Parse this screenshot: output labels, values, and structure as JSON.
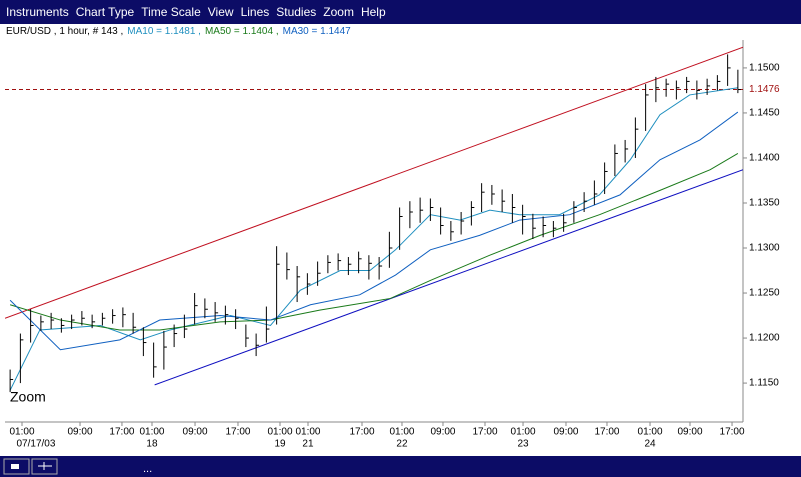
{
  "menu": [
    "Instruments",
    "Chart Type",
    "Time Scale",
    "View",
    "Lines",
    "Studies",
    "Zoom",
    "Help"
  ],
  "status_text": "...",
  "chart_data": {
    "type": "ohlc",
    "subtitle": "EUR/USD , 1 hour, # 143 ,",
    "zoom_label": "Zoom",
    "bar_color": "#000000",
    "close": [
      1.1154,
      1.1198,
      1.1214,
      1.1218,
      1.122,
      1.1214,
      1.122,
      1.1222,
      1.1218,
      1.1222,
      1.1225,
      1.1226,
      1.1212,
      1.1195,
      1.1168,
      1.119,
      1.1205,
      1.121,
      1.1236,
      1.1232,
      1.1228,
      1.1226,
      1.1222,
      1.12,
      1.1192,
      1.121,
      1.1282,
      1.1276,
      1.1268,
      1.126,
      1.1272,
      1.1284,
      1.1286,
      1.1282,
      1.1288,
      1.1283,
      1.128,
      1.13,
      1.1335,
      1.134,
      1.1342,
      1.1345,
      1.1325,
      1.1318,
      1.133,
      1.1345,
      1.1362,
      1.136,
      1.1352,
      1.1345,
      1.1335,
      1.1322,
      1.1325,
      1.1322,
      1.1328,
      1.1345,
      1.1352,
      1.136,
      1.1385,
      1.1405,
      1.141,
      1.1432,
      1.147,
      1.1478,
      1.1482,
      1.1478,
      1.1485,
      1.1475,
      1.148,
      1.1485,
      1.15,
      1.1476
    ],
    "high": [
      1.1165,
      1.1205,
      1.1232,
      1.1225,
      1.1228,
      1.1222,
      1.1226,
      1.123,
      1.1226,
      1.1228,
      1.1232,
      1.1234,
      1.1228,
      1.1212,
      1.1195,
      1.1208,
      1.1215,
      1.1226,
      1.125,
      1.1244,
      1.124,
      1.1236,
      1.1232,
      1.1215,
      1.1205,
      1.1235,
      1.1302,
      1.1295,
      1.128,
      1.1272,
      1.1285,
      1.1292,
      1.1294,
      1.129,
      1.1296,
      1.1292,
      1.129,
      1.1318,
      1.1345,
      1.1352,
      1.1356,
      1.1355,
      1.1345,
      1.133,
      1.134,
      1.1352,
      1.1372,
      1.137,
      1.1365,
      1.136,
      1.1348,
      1.1338,
      1.1335,
      1.133,
      1.1338,
      1.1352,
      1.1362,
      1.1375,
      1.1395,
      1.1415,
      1.142,
      1.1445,
      1.1482,
      1.149,
      1.1488,
      1.1486,
      1.149,
      1.1486,
      1.1488,
      1.1492,
      1.1515,
      1.1498
    ],
    "low": [
      1.114,
      1.115,
      1.1195,
      1.1208,
      1.121,
      1.1206,
      1.121,
      1.1214,
      1.1211,
      1.1214,
      1.1216,
      1.1212,
      1.1205,
      1.118,
      1.1156,
      1.1165,
      1.119,
      1.12,
      1.1215,
      1.1222,
      1.1218,
      1.1215,
      1.121,
      1.119,
      1.118,
      1.1195,
      1.1215,
      1.1265,
      1.124,
      1.1248,
      1.1258,
      1.1272,
      1.1275,
      1.127,
      1.1272,
      1.1265,
      1.1265,
      1.1278,
      1.1298,
      1.1322,
      1.1328,
      1.133,
      1.1315,
      1.1308,
      1.1315,
      1.1325,
      1.134,
      1.1348,
      1.134,
      1.1328,
      1.1315,
      1.131,
      1.1312,
      1.1312,
      1.1318,
      1.1328,
      1.134,
      1.1348,
      1.136,
      1.138,
      1.1395,
      1.14,
      1.143,
      1.1462,
      1.1468,
      1.1465,
      1.1472,
      1.1465,
      1.147,
      1.1475,
      1.148,
      1.1472
    ],
    "series": [
      {
        "name": "MA10 = 1.1481 ,",
        "color": "#1f8fbf",
        "x": [
          0,
          2.9,
          8.8,
          12.7,
          15.6,
          21.5,
          25.4,
          28.3,
          32.2,
          35.1,
          37.6,
          41,
          43.9,
          46.8,
          49.7,
          53.6,
          57.5,
          60.5,
          63.4,
          66.3,
          71
        ],
        "values": [
          1.1142,
          1.1209,
          1.1214,
          1.1198,
          1.1209,
          1.1225,
          1.1214,
          1.1253,
          1.1275,
          1.1275,
          1.1298,
          1.1337,
          1.1331,
          1.1342,
          1.1337,
          1.1337,
          1.1359,
          1.1398,
          1.1448,
          1.147,
          1.1478
        ]
      },
      {
        "name": "MA50 = 1.1404 ,",
        "color": "#1a7a1a",
        "x": [
          0,
          4.9,
          10.7,
          14.6,
          20.5,
          25.4,
          30.2,
          37.1,
          41,
          46.8,
          51.7,
          57.5,
          63.4,
          68.3,
          71
        ],
        "values": [
          1.1237,
          1.122,
          1.1209,
          1.1209,
          1.1218,
          1.122,
          1.1231,
          1.1244,
          1.1264,
          1.1292,
          1.1314,
          1.1337,
          1.1364,
          1.1387,
          1.1405
        ]
      },
      {
        "name": "MA30 = 1.1447",
        "color": "#1060c0",
        "x": [
          0,
          4.9,
          10.7,
          14.6,
          20.5,
          25.4,
          29.3,
          34.1,
          37.6,
          41,
          45.8,
          49.7,
          54.6,
          59.5,
          63.4,
          67.3,
          71
        ],
        "values": [
          1.1242,
          1.1187,
          1.1198,
          1.122,
          1.1225,
          1.122,
          1.1237,
          1.1248,
          1.127,
          1.1298,
          1.1314,
          1.1331,
          1.1337,
          1.1359,
          1.1398,
          1.142,
          1.1451
        ]
      }
    ],
    "trendlines": [
      {
        "color": "#c01020",
        "x": [
          -0.5,
          71.5
        ],
        "values": [
          1.1222,
          1.1523
        ]
      },
      {
        "color": "#1010c0",
        "x": [
          14.1,
          71.5
        ],
        "values": [
          1.1148,
          1.1387
        ]
      }
    ],
    "level": {
      "value": 1.1476,
      "color": "#a01010"
    },
    "xlim": [
      -0.5,
      71.5
    ],
    "ylim": [
      1.1109,
      1.1531
    ],
    "yticks": [
      {
        "value": 1.15,
        "label": "1.1500"
      },
      {
        "value": 1.145,
        "label": "1.1450"
      },
      {
        "value": 1.14,
        "label": "1.1400"
      },
      {
        "value": 1.135,
        "label": "1.1350"
      },
      {
        "value": 1.13,
        "label": "1.1300"
      },
      {
        "value": 1.125,
        "label": "1.1250"
      },
      {
        "value": 1.12,
        "label": "1.1200"
      },
      {
        "value": 1.115,
        "label": "1.1150"
      }
    ],
    "xticks": [
      {
        "value": 1.16,
        "label": "01:00"
      },
      {
        "value": 6.82,
        "label": "09:00"
      },
      {
        "value": 10.91,
        "label": "17:00"
      },
      {
        "value": 13.84,
        "label": "01:00"
      },
      {
        "value": 18.04,
        "label": "09:00"
      },
      {
        "value": 22.23,
        "label": "17:00"
      },
      {
        "value": 26.33,
        "label": "01:00"
      },
      {
        "value": 29.06,
        "label": "01:00"
      },
      {
        "value": 34.33,
        "label": "17:00"
      },
      {
        "value": 38.23,
        "label": "01:00"
      },
      {
        "value": 42.23,
        "label": "09:00"
      },
      {
        "value": 46.33,
        "label": "17:00"
      },
      {
        "value": 50.04,
        "label": "01:00"
      },
      {
        "value": 54.23,
        "label": "09:00"
      },
      {
        "value": 58.23,
        "label": "17:00"
      },
      {
        "value": 62.43,
        "label": "01:00"
      },
      {
        "value": 66.33,
        "label": "09:00"
      },
      {
        "value": 70.43,
        "label": "17:00"
      }
    ],
    "date_ticks": [
      {
        "value": 2.52,
        "label": "07/17/03"
      },
      {
        "value": 13.84,
        "label": "18"
      },
      {
        "value": 26.33,
        "label": "19"
      },
      {
        "value": 29.06,
        "label": "21"
      },
      {
        "value": 38.23,
        "label": "22"
      },
      {
        "value": 50.04,
        "label": "23"
      },
      {
        "value": 62.43,
        "label": "24"
      }
    ]
  }
}
